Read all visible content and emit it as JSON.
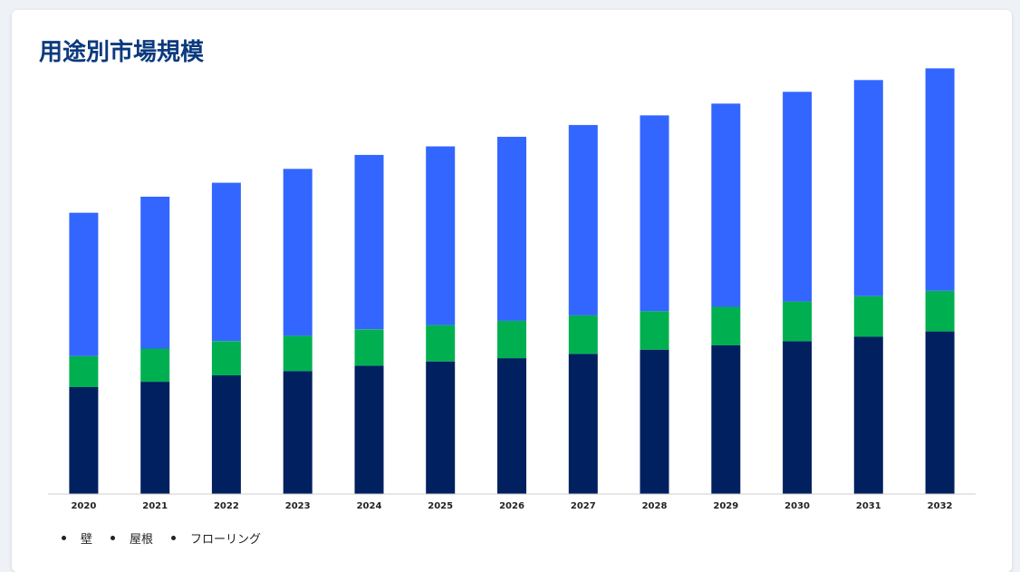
{
  "title": "用途別市場規模",
  "colors": {
    "title": "#0b3a7e",
    "axis": "#cccccc"
  },
  "chart_data": {
    "type": "bar",
    "stacked": true,
    "title": "用途別市場規模",
    "xlabel": "",
    "ylabel": "",
    "grid": false,
    "legend_position": "bottom-left",
    "categories": [
      "2020",
      "2021",
      "2022",
      "2023",
      "2024",
      "2025",
      "2026",
      "2027",
      "2028",
      "2029",
      "2030",
      "2031",
      "2032"
    ],
    "ylim": [
      0,
      400
    ],
    "series": [
      {
        "name": "フローリング",
        "color": "#002060",
        "values": [
          100,
          105,
          111,
          115,
          120,
          124,
          127,
          131,
          135,
          139,
          143,
          147,
          152
        ]
      },
      {
        "name": "屋根",
        "color": "#00b050",
        "values": [
          29,
          31,
          32,
          33,
          34,
          34,
          35,
          36,
          36,
          36,
          37,
          38,
          38
        ]
      },
      {
        "name": "壁",
        "color": "#3366ff",
        "values": [
          134,
          142,
          148,
          156,
          163,
          167,
          172,
          178,
          183,
          190,
          196,
          202,
          208
        ]
      }
    ],
    "legend_order": [
      "壁",
      "屋根",
      "フローリング"
    ]
  }
}
